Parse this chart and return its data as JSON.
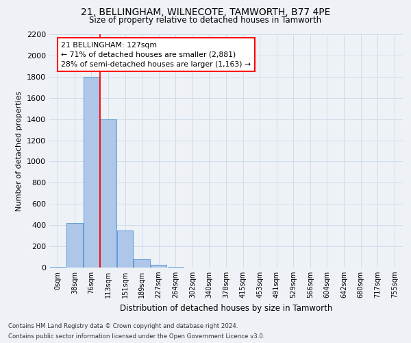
{
  "title1": "21, BELLINGHAM, WILNECOTE, TAMWORTH, B77 4PE",
  "title2": "Size of property relative to detached houses in Tamworth",
  "xlabel": "Distribution of detached houses by size in Tamworth",
  "ylabel": "Number of detached properties",
  "categories": [
    "0sqm",
    "38sqm",
    "76sqm",
    "113sqm",
    "151sqm",
    "189sqm",
    "227sqm",
    "264sqm",
    "302sqm",
    "340sqm",
    "378sqm",
    "415sqm",
    "453sqm",
    "491sqm",
    "529sqm",
    "566sqm",
    "604sqm",
    "642sqm",
    "680sqm",
    "717sqm",
    "755sqm"
  ],
  "values": [
    5,
    420,
    1800,
    1400,
    350,
    75,
    25,
    5,
    0,
    0,
    0,
    0,
    0,
    0,
    0,
    0,
    0,
    0,
    0,
    0,
    0
  ],
  "bar_color": "#aec6e8",
  "bar_edge_color": "#5b9bd5",
  "grid_color": "#d0dce8",
  "vline_color": "red",
  "vline_pos": 2.5,
  "annotation_text": "21 BELLINGHAM: 127sqm\n← 71% of detached houses are smaller (2,881)\n28% of semi-detached houses are larger (1,163) →",
  "annotation_box_color": "white",
  "annotation_box_edge": "red",
  "ylim": [
    0,
    2200
  ],
  "yticks": [
    0,
    200,
    400,
    600,
    800,
    1000,
    1200,
    1400,
    1600,
    1800,
    2000,
    2200
  ],
  "footnote1": "Contains HM Land Registry data © Crown copyright and database right 2024.",
  "footnote2": "Contains public sector information licensed under the Open Government Licence v3.0.",
  "bg_color": "#eef2f7"
}
